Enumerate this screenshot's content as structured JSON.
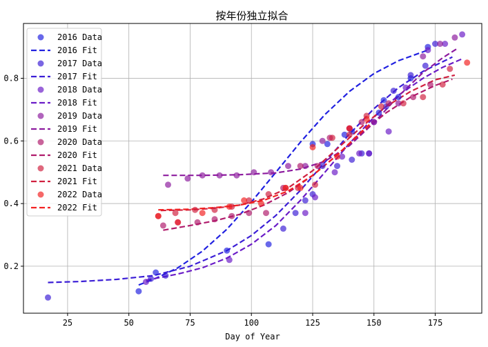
{
  "chart_data": {
    "type": "scatter",
    "title": "按年份独立拟合",
    "xlabel": "Day of Year",
    "ylabel": "",
    "xlim": [
      7,
      194
    ],
    "ylim": [
      0.05,
      0.975
    ],
    "xticks": [
      25,
      50,
      75,
      100,
      125,
      150,
      175
    ],
    "yticks": [
      0.2,
      0.4,
      0.6,
      0.8
    ],
    "grid": true,
    "legend_position": "upper-left",
    "series": [
      {
        "name": "2016",
        "data_label": "2016 Data",
        "fit_label": "2016 Fit",
        "color": "#2020e0",
        "points": [
          [
            54,
            0.12
          ],
          [
            61,
            0.18
          ],
          [
            90,
            0.25
          ],
          [
            107,
            0.27
          ],
          [
            125,
            0.59
          ],
          [
            131,
            0.59
          ],
          [
            138,
            0.62
          ],
          [
            141,
            0.63
          ],
          [
            152,
            0.69
          ],
          [
            154,
            0.73
          ],
          [
            160,
            0.74
          ],
          [
            165,
            0.8
          ],
          [
            172,
            0.9
          ]
        ],
        "fit": [
          [
            54,
            0.14
          ],
          [
            60,
            0.158
          ],
          [
            70,
            0.195
          ],
          [
            80,
            0.248
          ],
          [
            90,
            0.318
          ],
          [
            100,
            0.405
          ],
          [
            110,
            0.5
          ],
          [
            120,
            0.596
          ],
          [
            130,
            0.684
          ],
          [
            140,
            0.758
          ],
          [
            150,
            0.815
          ],
          [
            160,
            0.856
          ],
          [
            172,
            0.89
          ]
        ]
      },
      {
        "name": "2017",
        "data_label": "2017 Data",
        "fit_label": "2017 Fit",
        "color": "#3b1ed6",
        "points": [
          [
            17,
            0.1
          ],
          [
            59,
            0.16
          ],
          [
            65,
            0.17
          ],
          [
            113,
            0.32
          ],
          [
            118,
            0.37
          ],
          [
            122,
            0.41
          ],
          [
            125,
            0.43
          ],
          [
            129,
            0.52
          ],
          [
            135,
            0.52
          ],
          [
            141,
            0.54
          ],
          [
            145,
            0.56
          ],
          [
            148,
            0.56
          ],
          [
            155,
            0.71
          ],
          [
            158,
            0.76
          ],
          [
            165,
            0.81
          ],
          [
            171,
            0.84
          ],
          [
            175,
            0.91
          ]
        ],
        "fit": [
          [
            17,
            0.148
          ],
          [
            30,
            0.151
          ],
          [
            45,
            0.158
          ],
          [
            60,
            0.17
          ],
          [
            75,
            0.2
          ],
          [
            90,
            0.25
          ],
          [
            100,
            0.298
          ],
          [
            110,
            0.362
          ],
          [
            120,
            0.442
          ],
          [
            130,
            0.532
          ],
          [
            140,
            0.622
          ],
          [
            150,
            0.703
          ],
          [
            160,
            0.77
          ],
          [
            170,
            0.822
          ],
          [
            182,
            0.868
          ]
        ]
      },
      {
        "name": "2018",
        "data_label": "2018 Data",
        "fit_label": "2018 Fit",
        "color": "#6a1bc7",
        "points": [
          [
            57,
            0.15
          ],
          [
            91,
            0.22
          ],
          [
            122,
            0.37
          ],
          [
            126,
            0.42
          ],
          [
            134,
            0.5
          ],
          [
            137,
            0.55
          ],
          [
            144,
            0.56
          ],
          [
            148,
            0.56
          ],
          [
            150,
            0.66
          ],
          [
            156,
            0.63
          ],
          [
            163,
            0.77
          ],
          [
            172,
            0.89
          ],
          [
            179,
            0.91
          ],
          [
            186,
            0.94
          ]
        ],
        "fit": [
          [
            57,
            0.155
          ],
          [
            70,
            0.175
          ],
          [
            80,
            0.195
          ],
          [
            90,
            0.226
          ],
          [
            100,
            0.27
          ],
          [
            110,
            0.33
          ],
          [
            120,
            0.41
          ],
          [
            130,
            0.5
          ],
          [
            140,
            0.592
          ],
          [
            150,
            0.676
          ],
          [
            160,
            0.746
          ],
          [
            170,
            0.8
          ],
          [
            178,
            0.835
          ],
          [
            186,
            0.862
          ]
        ]
      },
      {
        "name": "2019",
        "data_label": "2019 Data",
        "fit_label": "2019 Fit",
        "color": "#8c1a9e",
        "points": [
          [
            66,
            0.46
          ],
          [
            74,
            0.48
          ],
          [
            80,
            0.49
          ],
          [
            87,
            0.49
          ],
          [
            94,
            0.49
          ],
          [
            101,
            0.5
          ],
          [
            108,
            0.5
          ],
          [
            115,
            0.52
          ],
          [
            122,
            0.52
          ],
          [
            129,
            0.6
          ],
          [
            140,
            0.64
          ],
          [
            150,
            0.66
          ],
          [
            160,
            0.72
          ],
          [
            170,
            0.87
          ],
          [
            177,
            0.91
          ],
          [
            183,
            0.93
          ]
        ],
        "fit": [
          [
            64,
            0.49
          ],
          [
            80,
            0.49
          ],
          [
            95,
            0.492
          ],
          [
            110,
            0.498
          ],
          [
            120,
            0.51
          ],
          [
            130,
            0.535
          ],
          [
            140,
            0.585
          ],
          [
            150,
            0.658
          ],
          [
            160,
            0.743
          ],
          [
            170,
            0.818
          ],
          [
            178,
            0.865
          ],
          [
            184,
            0.895
          ]
        ]
      },
      {
        "name": "2020",
        "data_label": "2020 Data",
        "fit_label": "2020 Fit",
        "color": "#b01a6b",
        "points": [
          [
            64,
            0.33
          ],
          [
            70,
            0.34
          ],
          [
            78,
            0.34
          ],
          [
            85,
            0.35
          ],
          [
            92,
            0.36
          ],
          [
            99,
            0.37
          ],
          [
            106,
            0.37
          ],
          [
            113,
            0.45
          ],
          [
            120,
            0.52
          ],
          [
            127,
            0.52
          ],
          [
            132,
            0.61
          ],
          [
            140,
            0.64
          ],
          [
            145,
            0.66
          ],
          [
            156,
            0.72
          ],
          [
            166,
            0.74
          ],
          [
            173,
            0.78
          ]
        ],
        "fit": [
          [
            64,
            0.315
          ],
          [
            75,
            0.33
          ],
          [
            85,
            0.345
          ],
          [
            95,
            0.365
          ],
          [
            105,
            0.395
          ],
          [
            115,
            0.435
          ],
          [
            125,
            0.49
          ],
          [
            135,
            0.555
          ],
          [
            145,
            0.625
          ],
          [
            155,
            0.69
          ],
          [
            165,
            0.74
          ],
          [
            175,
            0.777
          ],
          [
            182,
            0.797
          ]
        ]
      },
      {
        "name": "2021",
        "data_label": "2021 Data",
        "fit_label": "2021 Fit",
        "color": "#d0203f",
        "points": [
          [
            62,
            0.36
          ],
          [
            69,
            0.37
          ],
          [
            77,
            0.38
          ],
          [
            85,
            0.38
          ],
          [
            92,
            0.39
          ],
          [
            99,
            0.41
          ],
          [
            107,
            0.43
          ],
          [
            114,
            0.45
          ],
          [
            119,
            0.45
          ],
          [
            126,
            0.46
          ],
          [
            133,
            0.61
          ],
          [
            140,
            0.62
          ],
          [
            147,
            0.68
          ],
          [
            153,
            0.71
          ],
          [
            162,
            0.72
          ],
          [
            170,
            0.74
          ],
          [
            178,
            0.78
          ],
          [
            181,
            0.83
          ]
        ],
        "fit": [
          [
            63,
            0.378
          ],
          [
            75,
            0.38
          ],
          [
            85,
            0.385
          ],
          [
            95,
            0.395
          ],
          [
            105,
            0.415
          ],
          [
            115,
            0.45
          ],
          [
            125,
            0.505
          ],
          [
            135,
            0.575
          ],
          [
            145,
            0.645
          ],
          [
            155,
            0.71
          ],
          [
            165,
            0.758
          ],
          [
            175,
            0.795
          ],
          [
            183,
            0.81
          ]
        ]
      },
      {
        "name": "2022",
        "data_label": "2022 Data",
        "fit_label": "2022 Fit",
        "color": "#f22020",
        "points": [
          [
            62,
            0.36
          ],
          [
            70,
            0.34
          ],
          [
            80,
            0.37
          ],
          [
            91,
            0.39
          ],
          [
            97,
            0.41
          ],
          [
            104,
            0.4
          ],
          [
            114,
            0.45
          ],
          [
            120,
            0.45
          ],
          [
            125,
            0.58
          ],
          [
            135,
            0.55
          ],
          [
            140,
            0.64
          ],
          [
            147,
            0.67
          ],
          [
            188,
            0.85
          ]
        ],
        "fit": [
          [
            62,
            0.38
          ],
          [
            75,
            0.382
          ],
          [
            85,
            0.387
          ],
          [
            95,
            0.395
          ],
          [
            105,
            0.41
          ],
          [
            115,
            0.44
          ],
          [
            125,
            0.49
          ],
          [
            135,
            0.555
          ],
          [
            145,
            0.63
          ],
          [
            150,
            0.665
          ]
        ]
      }
    ]
  }
}
